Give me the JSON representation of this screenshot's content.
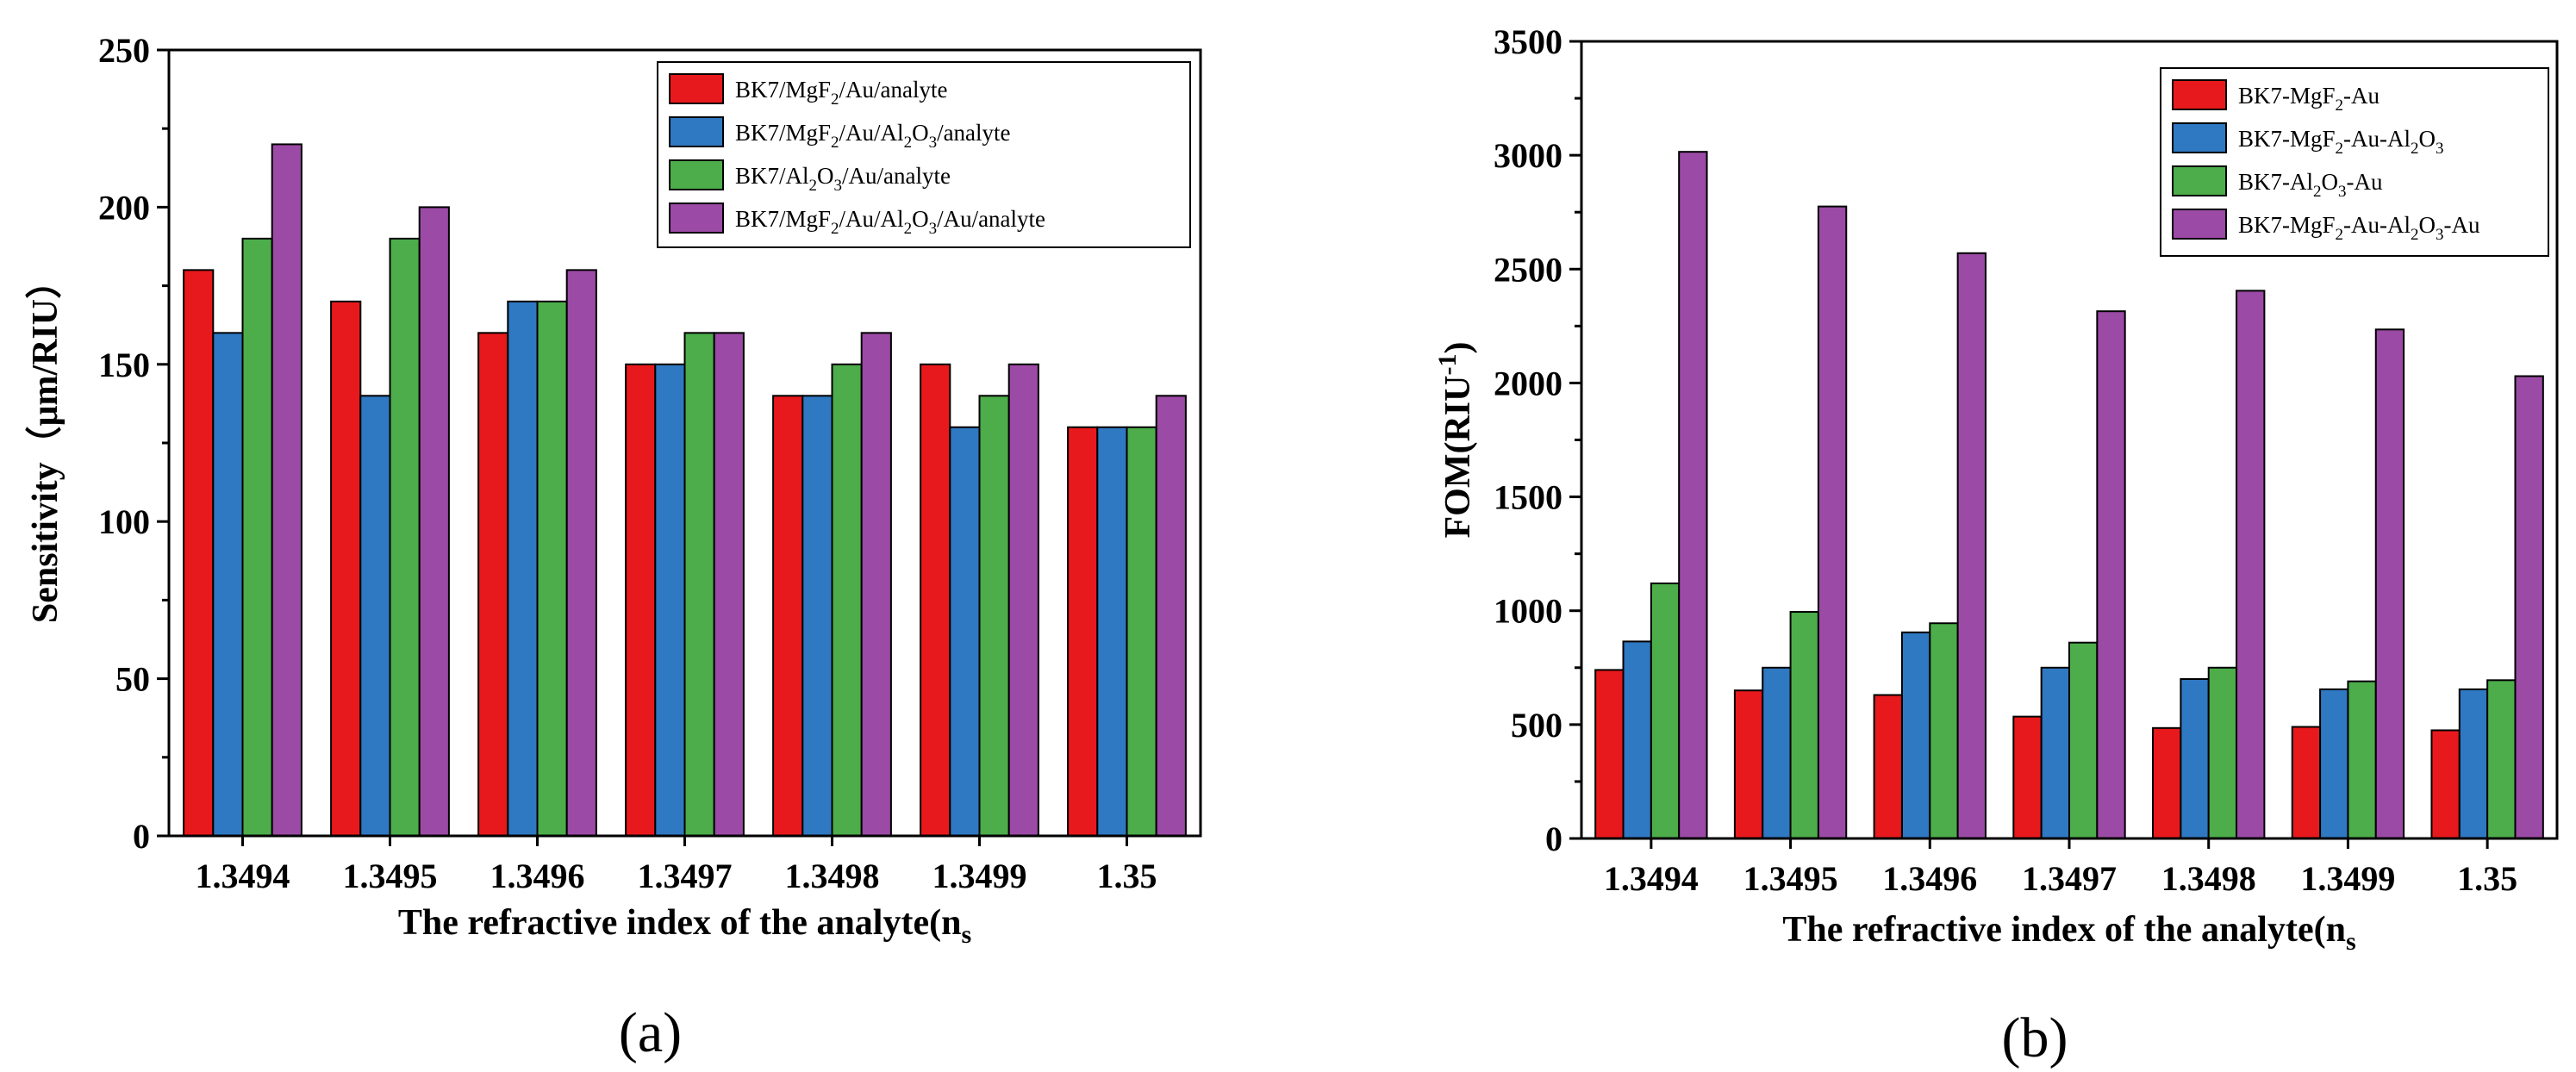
{
  "chart_data": [
    {
      "type": "bar",
      "panel_label": "(a)",
      "categories": [
        "1.3494",
        "1.3495",
        "1.3496",
        "1.3497",
        "1.3498",
        "1.3499",
        "1.35"
      ],
      "ylim": [
        0,
        250
      ],
      "yticks": [
        0,
        50,
        100,
        150,
        200,
        250
      ],
      "ylabel": "Sensitivity（μm/RIU）",
      "xlabel": "The refractive index of the analyte(n",
      "xlabel_sub": "s",
      "legend_position": "top-right",
      "series": [
        {
          "name": "BK7/MgF2/Au/analyte",
          "legend": [
            {
              "t": "BK7/MgF"
            },
            {
              "t": "2",
              "sub": true
            },
            {
              "t": "/Au/analyte"
            }
          ],
          "color": "#e8191c",
          "values": [
            180,
            170,
            160,
            150,
            140,
            150,
            130
          ]
        },
        {
          "name": "BK7/MgF2/Au/Al2O3/analyte",
          "legend": [
            {
              "t": "BK7/MgF"
            },
            {
              "t": "2",
              "sub": true
            },
            {
              "t": "/Au/Al"
            },
            {
              "t": "2",
              "sub": true
            },
            {
              "t": "O"
            },
            {
              "t": "3",
              "sub": true
            },
            {
              "t": "/analyte"
            }
          ],
          "color": "#2f78c2",
          "values": [
            160,
            140,
            170,
            150,
            140,
            130,
            130
          ]
        },
        {
          "name": "BK7/Al2O3/Au/analyte",
          "legend": [
            {
              "t": "BK7/Al"
            },
            {
              "t": "2",
              "sub": true
            },
            {
              "t": "O"
            },
            {
              "t": "3",
              "sub": true
            },
            {
              "t": "/Au/analyte"
            }
          ],
          "color": "#4cad4a",
          "values": [
            190,
            190,
            170,
            160,
            150,
            140,
            130
          ]
        },
        {
          "name": "BK7/MgF2/Au/Al2O3/Au/analyte",
          "legend": [
            {
              "t": "BK7/MgF"
            },
            {
              "t": "2",
              "sub": true
            },
            {
              "t": "/Au/Al"
            },
            {
              "t": "2",
              "sub": true
            },
            {
              "t": "O"
            },
            {
              "t": "3",
              "sub": true
            },
            {
              "t": "/Au/analyte"
            }
          ],
          "color": "#9b4aa5",
          "values": [
            220,
            200,
            180,
            160,
            160,
            150,
            140
          ]
        }
      ]
    },
    {
      "type": "bar",
      "panel_label": "(b)",
      "categories": [
        "1.3494",
        "1.3495",
        "1.3496",
        "1.3497",
        "1.3498",
        "1.3499",
        "1.35"
      ],
      "ylim": [
        0,
        3500
      ],
      "yticks": [
        0,
        500,
        1000,
        1500,
        2000,
        2500,
        3000,
        3500
      ],
      "ylabel": "FOM(RIU",
      "ylabel_sup": "-1",
      "ylabel_end": ")",
      "xlabel": "The refractive index of the analyte(n",
      "xlabel_sub": "s",
      "legend_position": "top-right",
      "series": [
        {
          "name": "BK7-MgF2-Au",
          "legend": [
            {
              "t": "BK7-MgF"
            },
            {
              "t": "2",
              "sub": true
            },
            {
              "t": "-Au"
            }
          ],
          "color": "#e8191c",
          "values": [
            740,
            650,
            630,
            535,
            485,
            490,
            475
          ]
        },
        {
          "name": "BK7-MgF2-Au-Al2O3",
          "legend": [
            {
              "t": "BK7-MgF"
            },
            {
              "t": "2",
              "sub": true
            },
            {
              "t": "-Au-Al"
            },
            {
              "t": "2",
              "sub": true
            },
            {
              "t": "O"
            },
            {
              "t": "3",
              "sub": true
            }
          ],
          "color": "#2f78c2",
          "values": [
            865,
            750,
            905,
            750,
            700,
            655,
            655
          ]
        },
        {
          "name": "BK7-Al2O3-Au",
          "legend": [
            {
              "t": "BK7-Al"
            },
            {
              "t": "2",
              "sub": true
            },
            {
              "t": "O"
            },
            {
              "t": "3",
              "sub": true
            },
            {
              "t": "-Au"
            }
          ],
          "color": "#4cad4a",
          "values": [
            1120,
            995,
            945,
            860,
            750,
            690,
            695
          ]
        },
        {
          "name": "BK7-MgF2-Au-Al2O3-Au",
          "legend": [
            {
              "t": "BK7-MgF"
            },
            {
              "t": "2",
              "sub": true
            },
            {
              "t": "-Au-Al"
            },
            {
              "t": "2",
              "sub": true
            },
            {
              "t": "O"
            },
            {
              "t": "3",
              "sub": true
            },
            {
              "t": "-Au"
            }
          ],
          "color": "#9b4aa5",
          "values": [
            3015,
            2775,
            2570,
            2315,
            2405,
            2235,
            2030
          ]
        }
      ]
    }
  ]
}
